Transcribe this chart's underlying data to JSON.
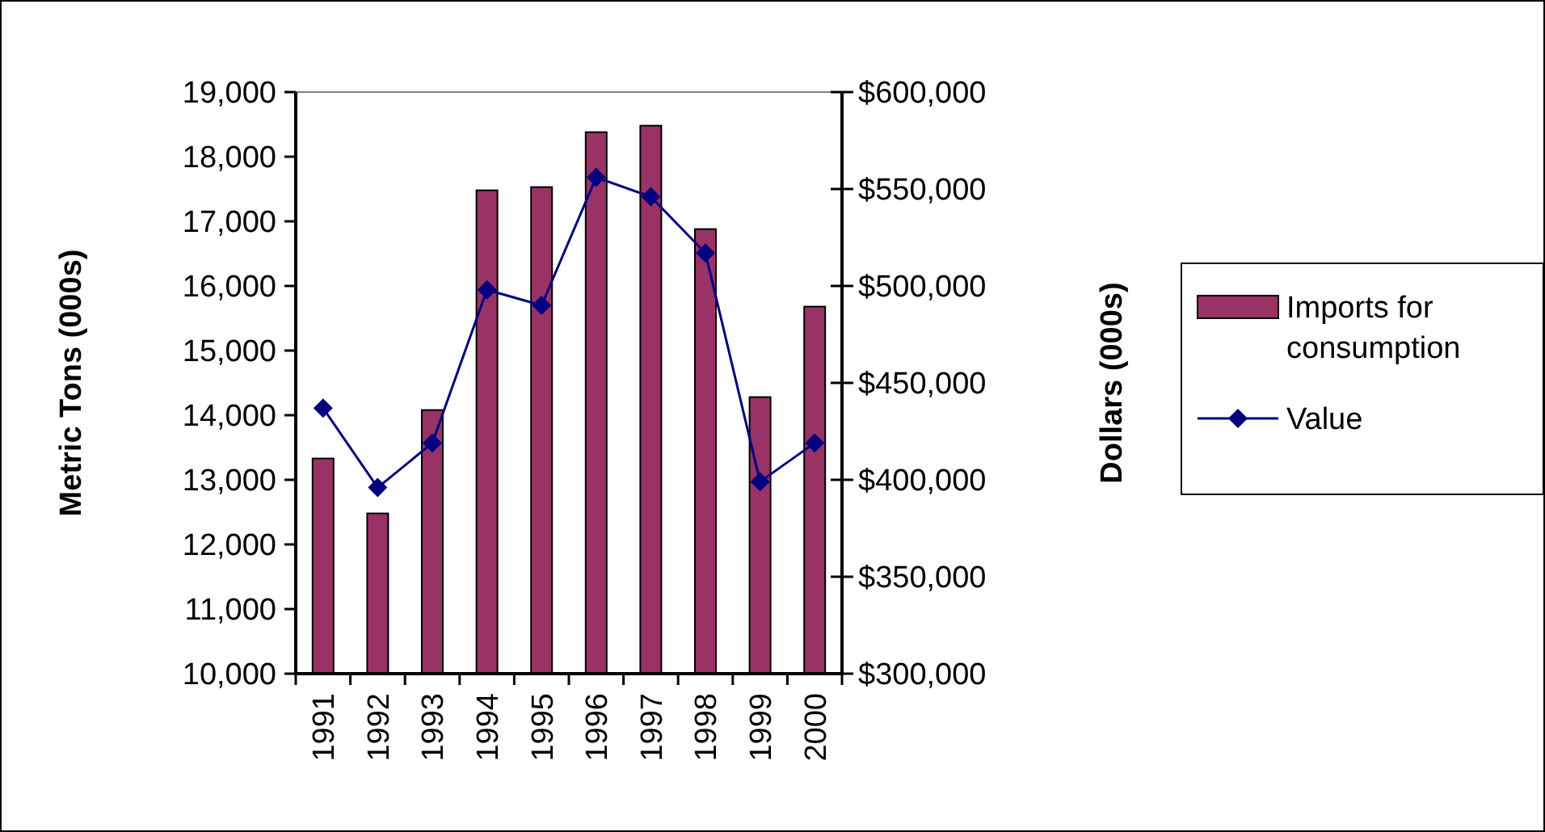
{
  "chart_data": {
    "type": "bar",
    "categories": [
      "1991",
      "1992",
      "1993",
      "1994",
      "1995",
      "1996",
      "1997",
      "1998",
      "1999",
      "2000"
    ],
    "series": [
      {
        "name": "Imports for consumption",
        "color": "#993366",
        "values": [
          13330,
          12480,
          14080,
          17480,
          17530,
          18380,
          18480,
          16880,
          14280,
          15680
        ]
      },
      {
        "name": "Value",
        "type": "line",
        "axis": "y2",
        "color": "#000080",
        "marker": "diamond",
        "values": [
          437000,
          396000,
          419000,
          498000,
          490000,
          556000,
          546000,
          517000,
          399000,
          419000
        ]
      }
    ],
    "ylabel": "Metric Tons (000s)",
    "y2label": "Dollars (000s)",
    "ylim": [
      10000,
      19000
    ],
    "yticks": [
      {
        "value": 10000,
        "label": "10,000"
      },
      {
        "value": 11000,
        "label": "11,000"
      },
      {
        "value": 12000,
        "label": "12,000"
      },
      {
        "value": 13000,
        "label": "13,000"
      },
      {
        "value": 14000,
        "label": "14,000"
      },
      {
        "value": 15000,
        "label": "15,000"
      },
      {
        "value": 16000,
        "label": "16,000"
      },
      {
        "value": 17000,
        "label": "17,000"
      },
      {
        "value": 18000,
        "label": "18,000"
      },
      {
        "value": 19000,
        "label": "19,000"
      }
    ],
    "y2lim": [
      300000,
      600000
    ],
    "y2ticks": [
      {
        "value": 300000,
        "label": "$300,000"
      },
      {
        "value": 350000,
        "label": "$350,000"
      },
      {
        "value": 400000,
        "label": "$400,000"
      },
      {
        "value": 450000,
        "label": "$450,000"
      },
      {
        "value": 500000,
        "label": "$500,000"
      },
      {
        "value": 550000,
        "label": "$550,000"
      },
      {
        "value": 600000,
        "label": "$600,000"
      }
    ],
    "legend": "right",
    "grid": false
  }
}
